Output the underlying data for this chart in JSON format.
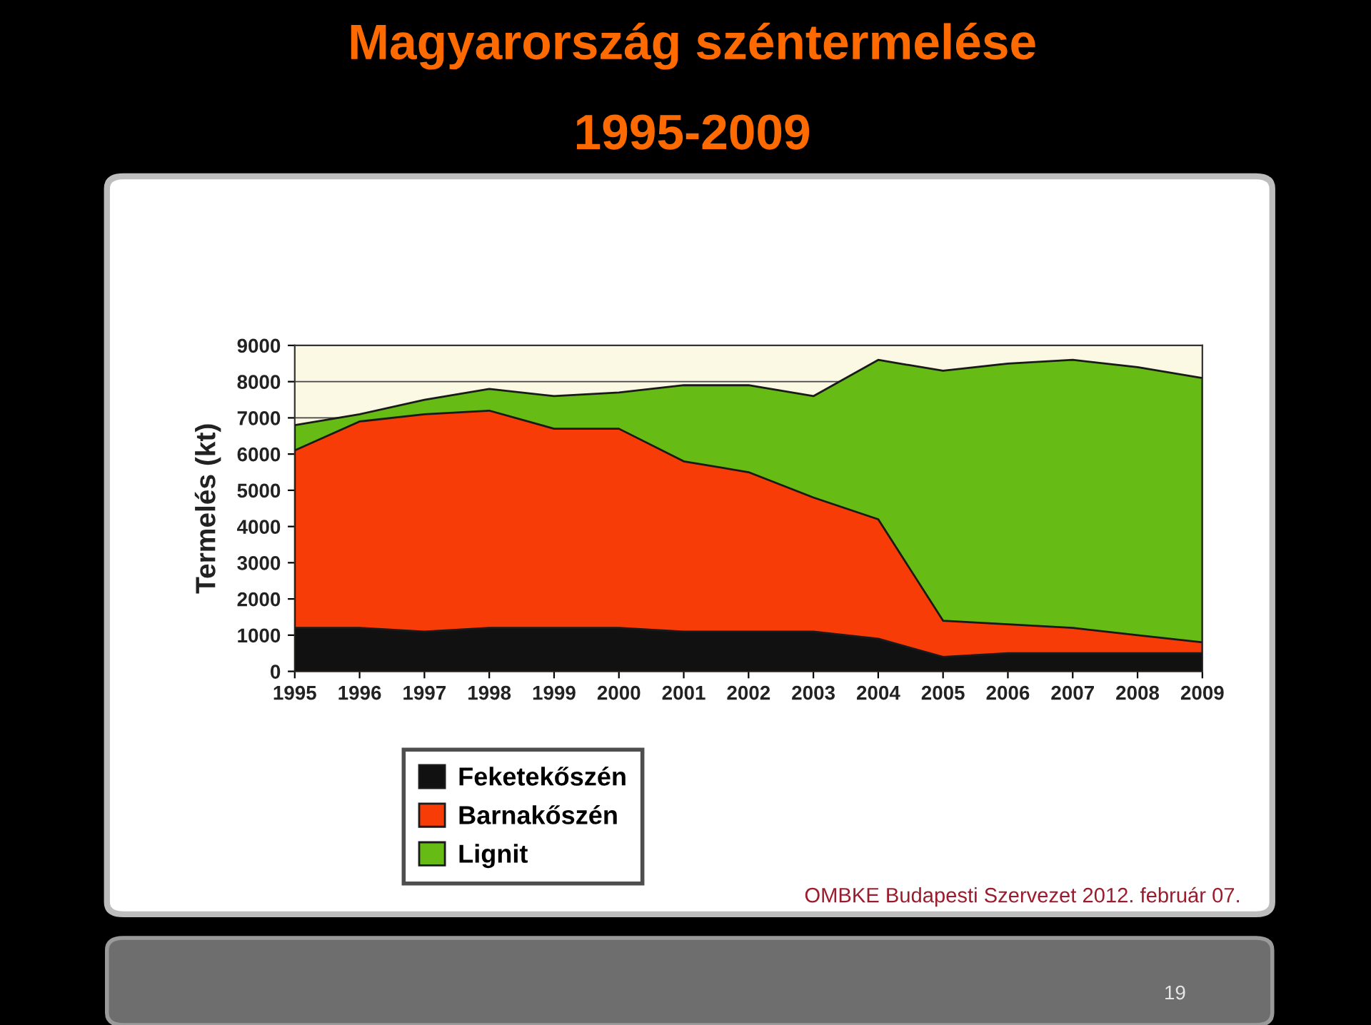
{
  "chart_data": {
    "type": "area",
    "title": "Magyarország széntermelése",
    "subtitle": "1995-2009",
    "ylabel": "Termelés (kt)",
    "categories": [
      "1995",
      "1996",
      "1997",
      "1998",
      "1999",
      "2000",
      "2001",
      "2002",
      "2003",
      "2004",
      "2005",
      "2006",
      "2007",
      "2008",
      "2009"
    ],
    "series": [
      {
        "name": "Feketekőszén",
        "color": "#111111",
        "values": [
          1200,
          1200,
          1100,
          1200,
          1200,
          1200,
          1100,
          1100,
          1100,
          900,
          400,
          500,
          500,
          500,
          500
        ]
      },
      {
        "name": "Barnakőszén",
        "color": "#f73c08",
        "values": [
          6100,
          6900,
          7100,
          7200,
          6700,
          6700,
          5800,
          5500,
          4800,
          4200,
          1400,
          1300,
          1200,
          1000,
          800
        ]
      },
      {
        "name": "Lignit",
        "color": "#66bb15",
        "values": [
          6800,
          7100,
          7500,
          7800,
          7600,
          7700,
          7900,
          7900,
          7600,
          8600,
          8300,
          8500,
          8600,
          8400,
          8100
        ]
      }
    ],
    "ylim": [
      0,
      9000
    ],
    "yticks": [
      0,
      1000,
      2000,
      3000,
      4000,
      5000,
      6000,
      7000,
      8000,
      9000
    ],
    "grid": "y",
    "legend": "bottom left",
    "annotations": [
      "OMBKE Budapesti Szervezet 2012. február 07.",
      "19"
    ]
  }
}
